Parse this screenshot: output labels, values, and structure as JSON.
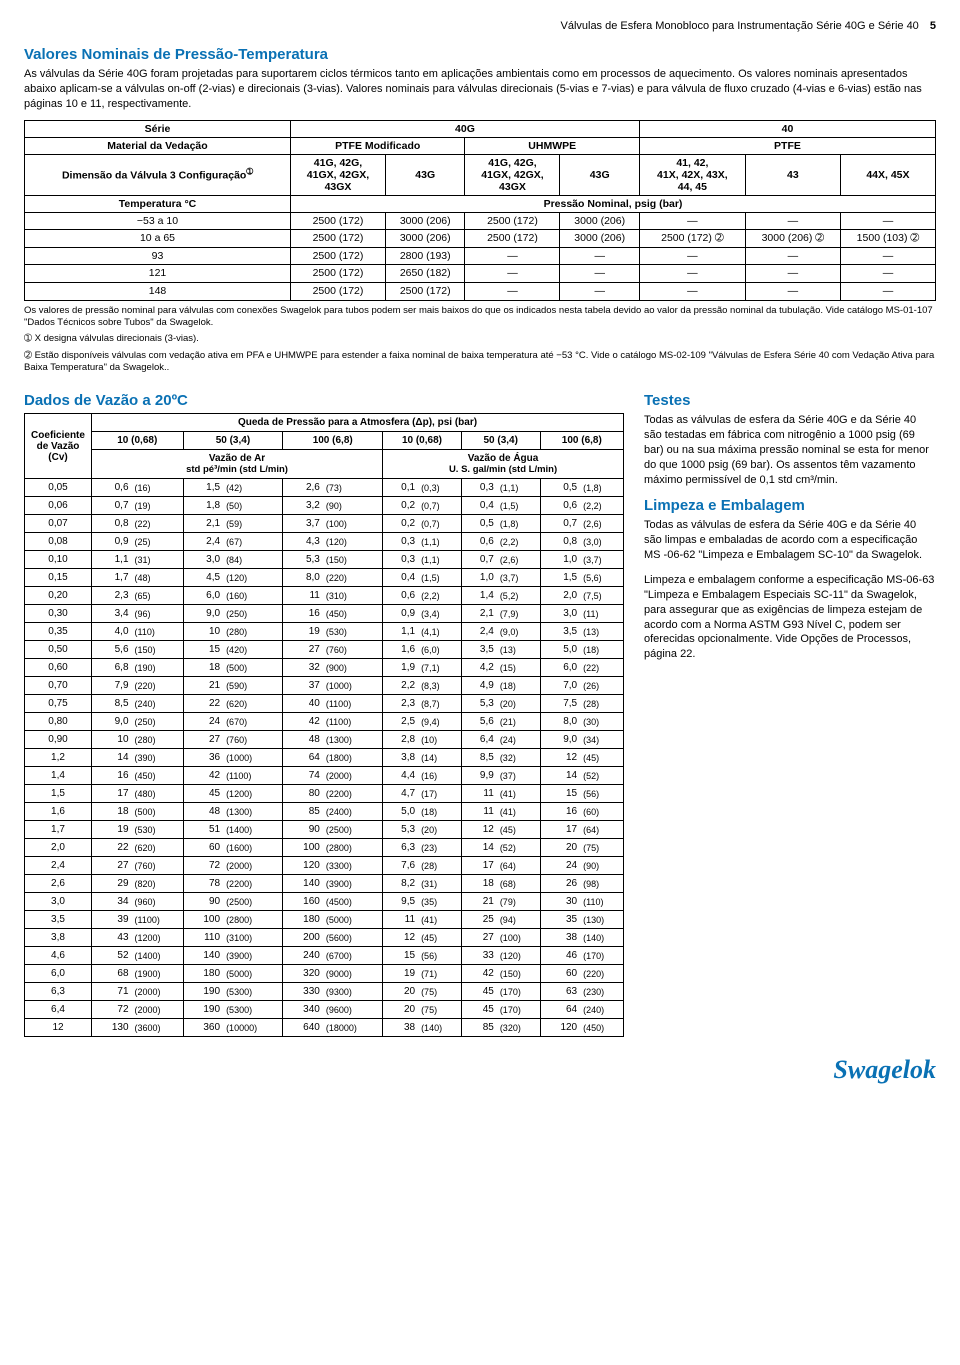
{
  "header": {
    "doc": "Válvulas de Esfera Monobloco para Instrumentação Série 40G e Série 40",
    "page": "5"
  },
  "sec1": {
    "title": "Valores Nominais de Pressão-Temperatura",
    "intro": "As válvulas da Série 40G foram projetadas para suportarem ciclos térmicos tanto em aplicações ambientais como em processos de aquecimento. Os valores nominais apresentados abaixo aplicam-se a válvulas on-off (2-vias) e direcionais (3-vias). Valores nominais para válvulas direcionais (5-vias e 7-vias) e para válvula de fluxo cruzado (4-vias e 6-vias) estão nas páginas 10 e 11, respectivamente.",
    "th": {
      "serie": "Série",
      "g40g": "40G",
      "g40": "40",
      "material": "Material da Vedação",
      "ptfemod": "PTFE Modificado",
      "uhmwpe": "UHMWPE",
      "ptfe": "PTFE",
      "dim": "Dimensão da Válvula 3 Configuração",
      "c1": "41G, 42G,\n41GX, 42GX,\n43GX",
      "c2": "43G",
      "c3": "41G, 42G,\n41GX, 42GX,\n43GX",
      "c4": "43G",
      "c5": "41, 42,\n41X, 42X, 43X,\n44, 45",
      "c6": "43",
      "c7": "44X, 45X",
      "temp": "Temperatura °C",
      "press": "Pressão Nominal, psig (bar)"
    },
    "rows": [
      {
        "t": "−53 a 10",
        "v": [
          "2500 (172)",
          "3000 (206)",
          "2500 (172)",
          "3000 (206)",
          "—",
          "—",
          "—"
        ]
      },
      {
        "t": "10 a 65",
        "v": [
          "2500 (172)",
          "3000 (206)",
          "2500 (172)",
          "3000 (206)",
          "2500 (172) ➁",
          "3000 (206) ➁",
          "1500 (103) ➁"
        ]
      },
      {
        "t": "93",
        "v": [
          "2500 (172)",
          "2800 (193)",
          "—",
          "—",
          "—",
          "—",
          "—"
        ]
      },
      {
        "t": "121",
        "v": [
          "2500 (172)",
          "2650 (182)",
          "—",
          "—",
          "—",
          "—",
          "—"
        ]
      },
      {
        "t": "148",
        "v": [
          "2500 (172)",
          "2500 (172)",
          "—",
          "—",
          "—",
          "—",
          "—"
        ]
      }
    ],
    "foot1": "Os valores de pressão nominal para válvulas com conexões Swagelok para tubos podem ser mais baixos do que os indicados nesta tabela devido ao valor da pressão nominal da tubulação. Vide catálogo MS-01-107 \"Dados Técnicos sobre Tubos\" da Swagelok.",
    "foot2": "➀ X designa válvulas direcionais (3-vias).",
    "foot3": "➁ Estão disponíveis válvulas com vedação ativa em PFA e UHMWPE para estender a faixa nominal de baixa temperatura até −53 °C. Vide o catálogo MS-02-109 \"Válvulas de Esfera Série 40 com Vedação Ativa para Baixa Temperatura\" da Swagelok.."
  },
  "sec2": {
    "title": "Dados de Vazão a 20ºC",
    "th": {
      "coef": "Coeficiente de Vazão (Cv)",
      "drop": "Queda de Pressão para a Atmosfera (Δp), psi (bar)",
      "c10a": "10 (0,68)",
      "c50a": "50 (3,4)",
      "c100a": "100 (6,8)",
      "c10b": "10 (0,68)",
      "c50b": "50 (3,4)",
      "c100b": "100 (6,8)",
      "air": "Vazão de Ar",
      "airU": "std pé³/min (std L/min)",
      "water": "Vazão de Água",
      "waterU": "U. S. gal/min (std L/min)"
    },
    "rows": [
      [
        "0,05",
        "0,6",
        "(16)",
        "1,5",
        "(42)",
        "2,6",
        "(73)",
        "0,1",
        "(0,3)",
        "0,3",
        "(1,1)",
        "0,5",
        "(1,8)"
      ],
      [
        "0,06",
        "0,7",
        "(19)",
        "1,8",
        "(50)",
        "3,2",
        "(90)",
        "0,2",
        "(0,7)",
        "0,4",
        "(1,5)",
        "0,6",
        "(2,2)"
      ],
      [
        "0,07",
        "0,8",
        "(22)",
        "2,1",
        "(59)",
        "3,7",
        "(100)",
        "0,2",
        "(0,7)",
        "0,5",
        "(1,8)",
        "0,7",
        "(2,6)"
      ],
      [
        "0,08",
        "0,9",
        "(25)",
        "2,4",
        "(67)",
        "4,3",
        "(120)",
        "0,3",
        "(1,1)",
        "0,6",
        "(2,2)",
        "0,8",
        "(3,0)"
      ],
      [
        "0,10",
        "1,1",
        "(31)",
        "3,0",
        "(84)",
        "5,3",
        "(150)",
        "0,3",
        "(1,1)",
        "0,7",
        "(2,6)",
        "1,0",
        "(3,7)"
      ],
      [
        "0,15",
        "1,7",
        "(48)",
        "4,5",
        "(120)",
        "8,0",
        "(220)",
        "0,4",
        "(1,5)",
        "1,0",
        "(3,7)",
        "1,5",
        "(5,6)"
      ],
      [
        "0,20",
        "2,3",
        "(65)",
        "6,0",
        "(160)",
        "11",
        "(310)",
        "0,6",
        "(2,2)",
        "1,4",
        "(5,2)",
        "2,0",
        "(7,5)"
      ],
      [
        "0,30",
        "3,4",
        "(96)",
        "9,0",
        "(250)",
        "16",
        "(450)",
        "0,9",
        "(3,4)",
        "2,1",
        "(7,9)",
        "3,0",
        "(11)"
      ],
      [
        "0,35",
        "4,0",
        "(110)",
        "10",
        "(280)",
        "19",
        "(530)",
        "1,1",
        "(4,1)",
        "2,4",
        "(9,0)",
        "3,5",
        "(13)"
      ],
      [
        "0,50",
        "5,6",
        "(150)",
        "15",
        "(420)",
        "27",
        "(760)",
        "1,6",
        "(6,0)",
        "3,5",
        "(13)",
        "5,0",
        "(18)"
      ],
      [
        "0,60",
        "6,8",
        "(190)",
        "18",
        "(500)",
        "32",
        "(900)",
        "1,9",
        "(7,1)",
        "4,2",
        "(15)",
        "6,0",
        "(22)"
      ],
      [
        "0,70",
        "7,9",
        "(220)",
        "21",
        "(590)",
        "37",
        "(1000)",
        "2,2",
        "(8,3)",
        "4,9",
        "(18)",
        "7,0",
        "(26)"
      ],
      [
        "0,75",
        "8,5",
        "(240)",
        "22",
        "(620)",
        "40",
        "(1100)",
        "2,3",
        "(8,7)",
        "5,3",
        "(20)",
        "7,5",
        "(28)"
      ],
      [
        "0,80",
        "9,0",
        "(250)",
        "24",
        "(670)",
        "42",
        "(1100)",
        "2,5",
        "(9,4)",
        "5,6",
        "(21)",
        "8,0",
        "(30)"
      ],
      [
        "0,90",
        "10",
        "(280)",
        "27",
        "(760)",
        "48",
        "(1300)",
        "2,8",
        "(10)",
        "6,4",
        "(24)",
        "9,0",
        "(34)"
      ],
      [
        "1,2",
        "14",
        "(390)",
        "36",
        "(1000)",
        "64",
        "(1800)",
        "3,8",
        "(14)",
        "8,5",
        "(32)",
        "12",
        "(45)"
      ],
      [
        "1,4",
        "16",
        "(450)",
        "42",
        "(1100)",
        "74",
        "(2000)",
        "4,4",
        "(16)",
        "9,9",
        "(37)",
        "14",
        "(52)"
      ],
      [
        "1,5",
        "17",
        "(480)",
        "45",
        "(1200)",
        "80",
        "(2200)",
        "4,7",
        "(17)",
        "11",
        "(41)",
        "15",
        "(56)"
      ],
      [
        "1,6",
        "18",
        "(500)",
        "48",
        "(1300)",
        "85",
        "(2400)",
        "5,0",
        "(18)",
        "11",
        "(41)",
        "16",
        "(60)"
      ],
      [
        "1,7",
        "19",
        "(530)",
        "51",
        "(1400)",
        "90",
        "(2500)",
        "5,3",
        "(20)",
        "12",
        "(45)",
        "17",
        "(64)"
      ],
      [
        "2,0",
        "22",
        "(620)",
        "60",
        "(1600)",
        "100",
        "(2800)",
        "6,3",
        "(23)",
        "14",
        "(52)",
        "20",
        "(75)"
      ],
      [
        "2,4",
        "27",
        "(760)",
        "72",
        "(2000)",
        "120",
        "(3300)",
        "7,6",
        "(28)",
        "17",
        "(64)",
        "24",
        "(90)"
      ],
      [
        "2,6",
        "29",
        "(820)",
        "78",
        "(2200)",
        "140",
        "(3900)",
        "8,2",
        "(31)",
        "18",
        "(68)",
        "26",
        "(98)"
      ],
      [
        "3,0",
        "34",
        "(960)",
        "90",
        "(2500)",
        "160",
        "(4500)",
        "9,5",
        "(35)",
        "21",
        "(79)",
        "30",
        "(110)"
      ],
      [
        "3,5",
        "39",
        "(1100)",
        "100",
        "(2800)",
        "180",
        "(5000)",
        "11",
        "(41)",
        "25",
        "(94)",
        "35",
        "(130)"
      ],
      [
        "3,8",
        "43",
        "(1200)",
        "110",
        "(3100)",
        "200",
        "(5600)",
        "12",
        "(45)",
        "27",
        "(100)",
        "38",
        "(140)"
      ],
      [
        "4,6",
        "52",
        "(1400)",
        "140",
        "(3900)",
        "240",
        "(6700)",
        "15",
        "(56)",
        "33",
        "(120)",
        "46",
        "(170)"
      ],
      [
        "6,0",
        "68",
        "(1900)",
        "180",
        "(5000)",
        "320",
        "(9000)",
        "19",
        "(71)",
        "42",
        "(150)",
        "60",
        "(220)"
      ],
      [
        "6,3",
        "71",
        "(2000)",
        "190",
        "(5300)",
        "330",
        "(9300)",
        "20",
        "(75)",
        "45",
        "(170)",
        "63",
        "(230)"
      ],
      [
        "6,4",
        "72",
        "(2000)",
        "190",
        "(5300)",
        "340",
        "(9600)",
        "20",
        "(75)",
        "45",
        "(170)",
        "64",
        "(240)"
      ],
      [
        "12",
        "130",
        "(3600)",
        "360",
        "(10000)",
        "640",
        "(18000)",
        "38",
        "(140)",
        "85",
        "(320)",
        "120",
        "(450)"
      ]
    ]
  },
  "right": {
    "t1": "Testes",
    "p1": "Todas as válvulas de esfera da Série 40G e da Série 40 são testadas em fábrica com nitrogênio a 1000 psig (69 bar) ou na sua máxima pressão nominal se esta for menor do que 1000 psig (69 bar). Os assentos têm vazamento máximo permissível de 0,1 std cm³/min.",
    "t2": "Limpeza e Embalagem",
    "p2": "Todas as válvulas de esfera da Série 40G e da Série 40 são limpas e embaladas de acordo com a especificação MS -06-62 \"Limpeza e Embalagem SC-10\" da Swagelok.",
    "p3": "Limpeza e embalagem conforme a especificação MS-06-63 \"Limpeza e Embalagem Especiais SC-11\" da Swagelok, para assegurar que as exigências de limpeza estejam de acordo com a Norma ASTM G93 Nível C, podem ser oferecidas opcionalmente. Vide Opções de Processos, página 22."
  },
  "logo": "Swagelok"
}
